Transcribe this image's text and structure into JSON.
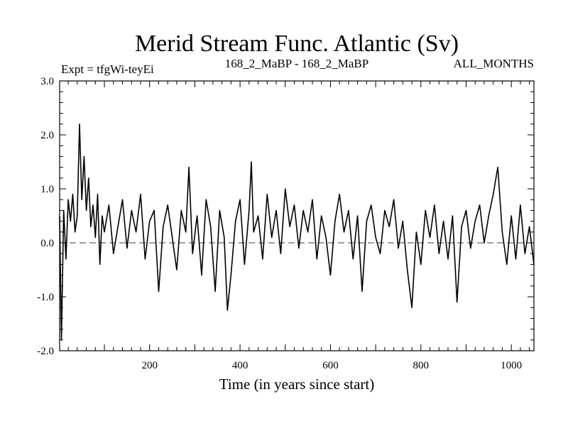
{
  "chart_data": {
    "type": "line",
    "title": "Merid Stream Func. Atlantic (Sv)",
    "subtitle_left": "Expt = tfgWi-teyEi",
    "subtitle_center": "168_2_MaBP - 168_2_MaBP",
    "subtitle_right": "ALL_MONTHS",
    "xlabel": "Time (in years since start)",
    "ylabel": "",
    "xlim": [
      1,
      1050
    ],
    "ylim": [
      -2.0,
      3.0
    ],
    "x_ticks": [
      200,
      400,
      600,
      800,
      1000
    ],
    "x_tick_labels": [
      "200",
      "400",
      "600",
      "800",
      "1000"
    ],
    "y_ticks": [
      -2,
      -1,
      0,
      1,
      2,
      3
    ],
    "y_tick_labels": [
      "-2.0",
      "-1.0",
      "0.0",
      "1.0",
      "2.0",
      "3.0"
    ],
    "reference_line": 0,
    "series": [
      {
        "color": "#000000",
        "x": [
          1,
          5,
          10,
          15,
          20,
          25,
          30,
          35,
          40,
          45,
          50,
          55,
          60,
          65,
          70,
          75,
          80,
          85,
          90,
          95,
          100,
          110,
          120,
          130,
          140,
          150,
          160,
          170,
          180,
          190,
          200,
          210,
          220,
          230,
          240,
          250,
          260,
          270,
          280,
          287,
          295,
          305,
          315,
          325,
          335,
          345,
          355,
          365,
          372,
          380,
          390,
          400,
          410,
          420,
          425,
          430,
          440,
          450,
          460,
          470,
          480,
          490,
          500,
          510,
          520,
          530,
          540,
          550,
          560,
          570,
          580,
          590,
          600,
          610,
          620,
          630,
          640,
          650,
          660,
          670,
          680,
          690,
          700,
          710,
          720,
          730,
          740,
          750,
          760,
          770,
          780,
          790,
          800,
          810,
          820,
          830,
          840,
          850,
          860,
          870,
          880,
          890,
          900,
          910,
          920,
          930,
          940,
          950,
          960,
          970,
          980,
          990,
          1000,
          1010,
          1020,
          1030,
          1040,
          1050
        ],
        "y": [
          0.5,
          -1.8,
          0.6,
          -0.3,
          0.8,
          0.4,
          0.9,
          0.2,
          0.5,
          2.2,
          0.8,
          1.6,
          0.6,
          1.2,
          0.3,
          0.7,
          0.1,
          0.9,
          -0.4,
          0.5,
          0.2,
          0.7,
          -0.2,
          0.3,
          0.8,
          -0.1,
          0.6,
          0.2,
          0.9,
          -0.3,
          0.4,
          0.6,
          -0.9,
          0.3,
          0.7,
          0.1,
          -0.5,
          0.6,
          0.2,
          1.4,
          -0.2,
          0.5,
          -0.6,
          0.8,
          0.3,
          -0.9,
          0.6,
          0.1,
          -1.25,
          -0.6,
          0.4,
          0.8,
          -0.4,
          0.6,
          1.5,
          0.2,
          0.5,
          -0.3,
          0.9,
          0.1,
          0.6,
          -0.2,
          1.0,
          0.3,
          0.7,
          -0.1,
          0.6,
          0.2,
          0.8,
          -0.3,
          0.5,
          0.1,
          -0.6,
          0.4,
          0.9,
          0.2,
          0.6,
          -0.3,
          0.5,
          -0.9,
          0.4,
          0.7,
          0.1,
          -0.2,
          0.6,
          0.3,
          0.8,
          -0.1,
          0.4,
          -0.5,
          -1.2,
          0.2,
          -0.4,
          0.6,
          0.1,
          0.7,
          -0.2,
          0.4,
          -0.3,
          0.5,
          -1.1,
          0.3,
          0.6,
          -0.1,
          0.4,
          0.7,
          0.0,
          0.5,
          0.9,
          1.4,
          0.2,
          -0.4,
          0.5,
          -0.3,
          0.7,
          -0.2,
          0.3,
          -0.4
        ]
      }
    ]
  }
}
